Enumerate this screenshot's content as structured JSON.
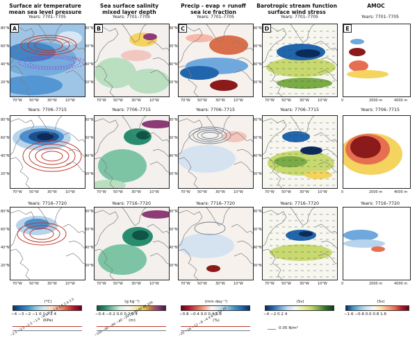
{
  "columns": [
    {
      "title_line1": "Surface air temperature",
      "title_line2": "mean sea level pressure",
      "letter": "A"
    },
    {
      "title_line1": "Sea surface salinity",
      "title_line2": "mixed layer depth",
      "letter": "B"
    },
    {
      "title_line1": "Precip - evap + runoff",
      "title_line2": "sea ice fraction",
      "letter": "C"
    },
    {
      "title_line1": "Barotropic stream function",
      "title_line2": "surface wind stress",
      "letter": "D"
    },
    {
      "title_line1": "AMOC",
      "title_line2": "",
      "letter": "E"
    }
  ],
  "periods": [
    "Years: 7701–7705",
    "Years: 7706–7715",
    "Years: 7716–7720"
  ],
  "lat_ticks": [
    "80°N",
    "60°N",
    "40°N",
    "20°N"
  ],
  "lon_ticks": [
    "70°W",
    "50°W",
    "30°W",
    "10°W"
  ],
  "amoc_x_ticks": [
    "0",
    "2000 m",
    "4000 m"
  ],
  "colorbars": [
    {
      "unit": "(°C)",
      "ticks": "−4 −3 −2 −1  0  1  2  3  4",
      "unit2": "(KPa)",
      "ticks2": "−2.5 −2.0 −1.5 −1.0 −0.5 0.5 1.0 1.5 2.0 2.5",
      "palette": "rdbu"
    },
    {
      "unit": "(g kg⁻¹)",
      "ticks": "−0.4 −0.2  0.0  0.2  0.4",
      "unit2": "(m)",
      "ticks2": "−100 −80 −60 −40 −20  20  40  60  80 100",
      "palette": "sal"
    },
    {
      "unit": "(mm day⁻¹)",
      "ticks": "−0.8 −0.4  0.0  0.4  0.8",
      "unit2": "(%)",
      "ticks2": "−20 −16 −12 −8 −4  4  8  12 16 20",
      "palette": "pme"
    },
    {
      "unit": "(Sv)",
      "ticks": "−4   −2    0    2    4",
      "unit2": "",
      "ticks2": "",
      "palette": "bsf",
      "legend": "0.05 N/m²"
    },
    {
      "unit": "(Sv)",
      "ticks": "−1.6 −0.8  0.0  0.8  1.6",
      "unit2": "",
      "ticks2": "",
      "palette": "rdbu_r"
    }
  ],
  "colors": {
    "warm": "#c0392b",
    "cool": "#2166ac",
    "land": "#ffffff",
    "contour_red": "#c0392b",
    "contour_purple": "#9b30c8",
    "contour_gray": "#6c7a89",
    "salty": "#2a8c6e",
    "fresh": "#7d3c98"
  },
  "chart_data": {
    "type": "heatmap",
    "panels": [
      {
        "column": "A",
        "period": "Years: 7701–7705",
        "field": "Surface air temperature anomaly",
        "pattern": "strong cooling over North Atlantic and Labrador Sea"
      },
      {
        "column": "A",
        "period": "Years: 7706–7715",
        "field": "Surface air temperature anomaly",
        "pattern": "strong cooling centred 60°N 40°W"
      },
      {
        "column": "A",
        "period": "Years: 7716–7720",
        "field": "Surface air temperature anomaly",
        "pattern": "weak cooling near Greenland"
      },
      {
        "column": "E",
        "period": "Years: 7706–7715",
        "field": "AMOC anomaly (Sv)",
        "pattern": "strong positive anomaly centred at 40°N, 2000 m depth"
      }
    ],
    "colorbar_ranges": {
      "A_temperature_C": [
        -4,
        4
      ],
      "A_pressure_KPa": [
        -2.5,
        2.5
      ],
      "B_salinity_g_per_kg": [
        -0.4,
        0.4
      ],
      "B_mld_m": [
        -100,
        100
      ],
      "C_pme_mm_per_day": [
        -0.8,
        0.8
      ],
      "C_seaice_pct": [
        -20,
        20
      ],
      "D_bsf_Sv": [
        -4,
        4
      ],
      "E_amoc_Sv": [
        -1.6,
        1.6
      ]
    },
    "wind_stress_reference": "0.05 N/m²"
  }
}
